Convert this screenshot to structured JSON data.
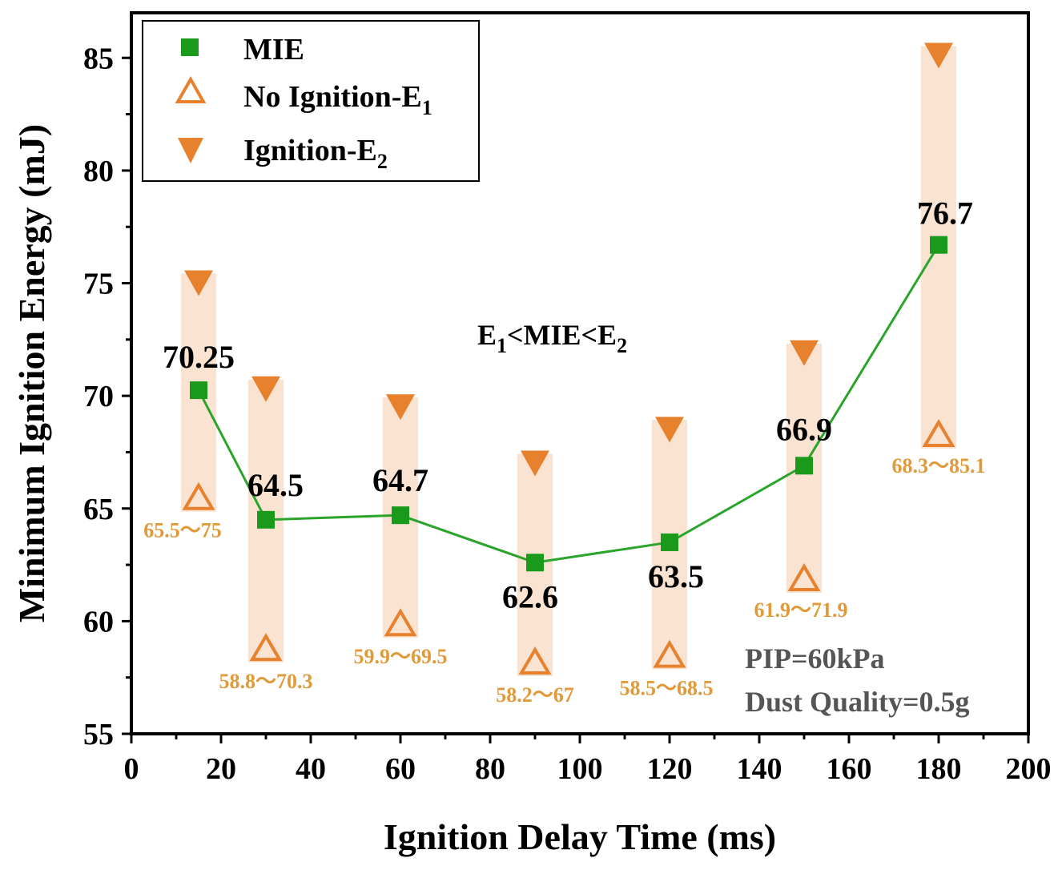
{
  "chart_data": {
    "type": "scatter",
    "xlabel": "Ignition Delay Time (ms)",
    "ylabel": "Minimum Ignition Energy (mJ)",
    "xlim": [
      0,
      200
    ],
    "ylim": [
      55,
      87
    ],
    "xticks": [
      0,
      20,
      40,
      60,
      80,
      100,
      120,
      140,
      160,
      180,
      200
    ],
    "yticks": [
      55,
      60,
      65,
      70,
      75,
      80,
      85
    ],
    "x": [
      15,
      30,
      60,
      90,
      120,
      150,
      180
    ],
    "series": [
      {
        "name": "MIE",
        "values": [
          70.25,
          64.5,
          64.7,
          62.6,
          63.5,
          66.9,
          76.7
        ],
        "labels": [
          "70.25",
          "64.5",
          "64.7",
          "62.6",
          "63.5",
          "66.9",
          "76.7"
        ]
      },
      {
        "name": "No Ignition-E",
        "subscript": "1",
        "values": [
          65.5,
          58.8,
          59.9,
          58.2,
          58.5,
          61.9,
          68.3
        ]
      },
      {
        "name": "Ignition-E",
        "subscript": "2",
        "values": [
          75,
          70.3,
          69.5,
          67,
          68.5,
          71.9,
          85.1
        ]
      }
    ],
    "range_labels": [
      "65.5～75",
      "58.8～70.3",
      "59.9～69.5",
      "58.2～67",
      "58.5～68.5",
      "61.9～71.9",
      "68.3～85.1"
    ],
    "annotation_formula": {
      "e": "E",
      "s1": "1",
      "mid": "<MIE<E",
      "s2": "2"
    },
    "annotation_conditions": [
      "PIP=60kPa",
      "Dust Quality=0.5g"
    ],
    "legend_position": "top-left",
    "colors": {
      "mie": "#1a9a1a",
      "mie_line": "#2aa52a",
      "triangle": "#e8812d",
      "band": "#fbe3d2",
      "range_text": "#e09a3a",
      "conditions_text": "#555555"
    }
  }
}
